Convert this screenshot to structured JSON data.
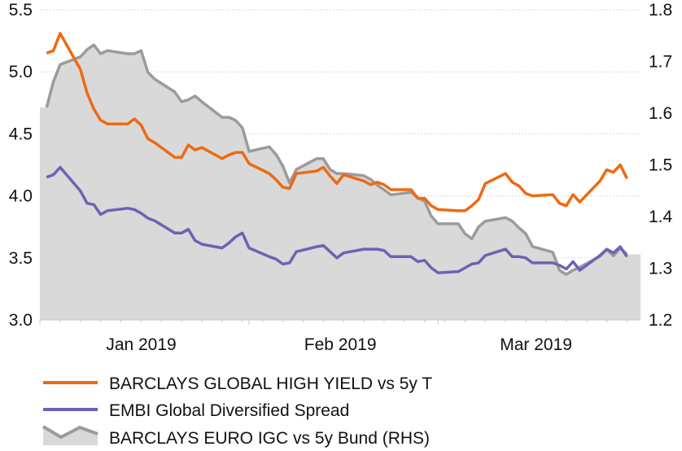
{
  "chart_data": {
    "type": "line",
    "title": "",
    "xlabel": "",
    "ylabel": "",
    "ylabel_right": "",
    "xlim": [
      "2019-01-01",
      "2019-03-31"
    ],
    "ylim": [
      3.0,
      5.5
    ],
    "ylim_right": [
      1.2,
      1.8
    ],
    "yticks": [
      "5.5",
      "5.0",
      "4.5",
      "4.0",
      "3.5",
      "3.0"
    ],
    "yticks_right": [
      "1.8",
      "1.7",
      "1.6",
      "1.5",
      "1.4",
      "1.3",
      "1.2"
    ],
    "xticks": [
      {
        "label": "Jan 2019",
        "start": "2019-01-01",
        "end": "2019-02-01"
      },
      {
        "label": "Feb 2019",
        "start": "2019-02-01",
        "end": "2019-03-01"
      },
      {
        "label": "Mar 2019",
        "start": "2019-03-01",
        "end": "2019-03-31"
      }
    ],
    "grid": true,
    "legend_placement": "bottom",
    "x": [
      "2019-01-02",
      "2019-01-03",
      "2019-01-04",
      "2019-01-07",
      "2019-01-08",
      "2019-01-09",
      "2019-01-10",
      "2019-01-11",
      "2019-01-14",
      "2019-01-15",
      "2019-01-16",
      "2019-01-17",
      "2019-01-18",
      "2019-01-21",
      "2019-01-22",
      "2019-01-23",
      "2019-01-24",
      "2019-01-25",
      "2019-01-28",
      "2019-01-29",
      "2019-01-30",
      "2019-01-31",
      "2019-02-01",
      "2019-02-04",
      "2019-02-05",
      "2019-02-06",
      "2019-02-07",
      "2019-02-08",
      "2019-02-11",
      "2019-02-12",
      "2019-02-13",
      "2019-02-14",
      "2019-02-15",
      "2019-02-18",
      "2019-02-19",
      "2019-02-20",
      "2019-02-21",
      "2019-02-22",
      "2019-02-25",
      "2019-02-26",
      "2019-02-27",
      "2019-02-28",
      "2019-03-01",
      "2019-03-04",
      "2019-03-05",
      "2019-03-06",
      "2019-03-07",
      "2019-03-08",
      "2019-03-11",
      "2019-03-12",
      "2019-03-13",
      "2019-03-14",
      "2019-03-15",
      "2019-03-18",
      "2019-03-19",
      "2019-03-20",
      "2019-03-21",
      "2019-03-22",
      "2019-03-25",
      "2019-03-26",
      "2019-03-27",
      "2019-03-28",
      "2019-03-29"
    ],
    "series": [
      {
        "name": "BARCLAYS GLOBAL HIGH YIELD vs 5y T",
        "axis": "left",
        "style": "line",
        "color": "#ED6A12",
        "values": [
          5.15,
          5.17,
          5.31,
          5.02,
          4.83,
          4.7,
          4.61,
          4.58,
          4.58,
          4.62,
          4.57,
          4.46,
          4.43,
          4.31,
          4.31,
          4.41,
          4.37,
          4.39,
          4.3,
          4.33,
          4.35,
          4.35,
          4.26,
          4.18,
          4.13,
          4.07,
          4.06,
          4.18,
          4.2,
          4.23,
          4.16,
          4.1,
          4.17,
          4.12,
          4.09,
          4.11,
          4.09,
          4.05,
          4.05,
          3.98,
          3.98,
          3.92,
          3.89,
          3.88,
          3.88,
          3.92,
          3.97,
          4.1,
          4.18,
          4.11,
          4.08,
          4.02,
          4.0,
          4.01,
          3.94,
          3.92,
          4.01,
          3.95,
          4.12,
          4.21,
          4.19,
          4.25,
          4.14
        ]
      },
      {
        "name": "EMBI Global Diversified Spread",
        "axis": "left",
        "style": "line",
        "color": "#6E62B4",
        "values": [
          4.15,
          4.17,
          4.23,
          4.04,
          3.94,
          3.93,
          3.85,
          3.88,
          3.9,
          3.89,
          3.86,
          3.82,
          3.8,
          3.7,
          3.7,
          3.73,
          3.64,
          3.61,
          3.58,
          3.62,
          3.67,
          3.7,
          3.58,
          3.51,
          3.49,
          3.45,
          3.46,
          3.55,
          3.59,
          3.6,
          3.55,
          3.5,
          3.54,
          3.57,
          3.57,
          3.57,
          3.56,
          3.51,
          3.51,
          3.47,
          3.48,
          3.42,
          3.38,
          3.39,
          3.42,
          3.45,
          3.46,
          3.52,
          3.57,
          3.51,
          3.51,
          3.5,
          3.46,
          3.46,
          3.44,
          3.41,
          3.47,
          3.4,
          3.52,
          3.57,
          3.54,
          3.59,
          3.51
        ]
      },
      {
        "name": "BARCLAYS EURO IGC vs 5y Bund (RHS)",
        "axis": "right",
        "style": "area",
        "color": "#9B9B9B",
        "fill": "#D9D9D9",
        "values": [
          1.611,
          1.661,
          1.694,
          1.709,
          1.723,
          1.732,
          1.715,
          1.721,
          1.715,
          1.715,
          1.721,
          1.679,
          1.666,
          1.641,
          1.622,
          1.626,
          1.633,
          1.622,
          1.592,
          1.592,
          1.586,
          1.572,
          1.526,
          1.535,
          1.52,
          1.498,
          1.465,
          1.491,
          1.512,
          1.512,
          1.491,
          1.483,
          1.483,
          1.479,
          1.472,
          1.461,
          1.452,
          1.442,
          1.447,
          1.436,
          1.43,
          1.401,
          1.386,
          1.386,
          1.367,
          1.357,
          1.38,
          1.391,
          1.398,
          1.391,
          1.378,
          1.367,
          1.342,
          1.331,
          1.296,
          1.288,
          1.296,
          1.302,
          1.323,
          1.336,
          1.324,
          1.339,
          1.327
        ]
      }
    ]
  }
}
